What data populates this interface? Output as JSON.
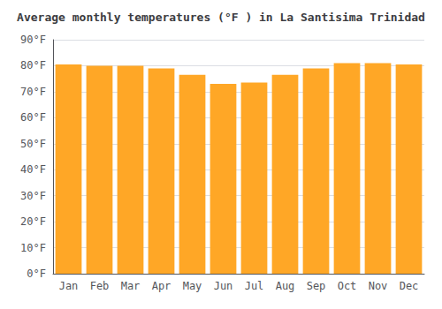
{
  "chart_data": {
    "type": "bar",
    "title": "Average monthly temperatures (°F ) in La Santisima Trinidad",
    "categories": [
      "Jan",
      "Feb",
      "Mar",
      "Apr",
      "May",
      "Jun",
      "Jul",
      "Aug",
      "Sep",
      "Oct",
      "Nov",
      "Dec"
    ],
    "values": [
      80.5,
      80.0,
      80.0,
      79.0,
      76.5,
      73.0,
      73.5,
      76.5,
      79.0,
      81.0,
      81.0,
      80.5
    ],
    "color": "#FFA726",
    "ylim": [
      0,
      90
    ],
    "yticks": [
      {
        "value": 0,
        "label": "0°F"
      },
      {
        "value": 10,
        "label": "10°F"
      },
      {
        "value": 20,
        "label": "20°F"
      },
      {
        "value": 30,
        "label": "30°F"
      },
      {
        "value": 40,
        "label": "40°F"
      },
      {
        "value": 50,
        "label": "50°F"
      },
      {
        "value": 60,
        "label": "60°F"
      },
      {
        "value": 70,
        "label": "70°F"
      },
      {
        "value": 80,
        "label": "80°F"
      },
      {
        "value": 90,
        "label": "90°F"
      }
    ],
    "grid": true
  }
}
